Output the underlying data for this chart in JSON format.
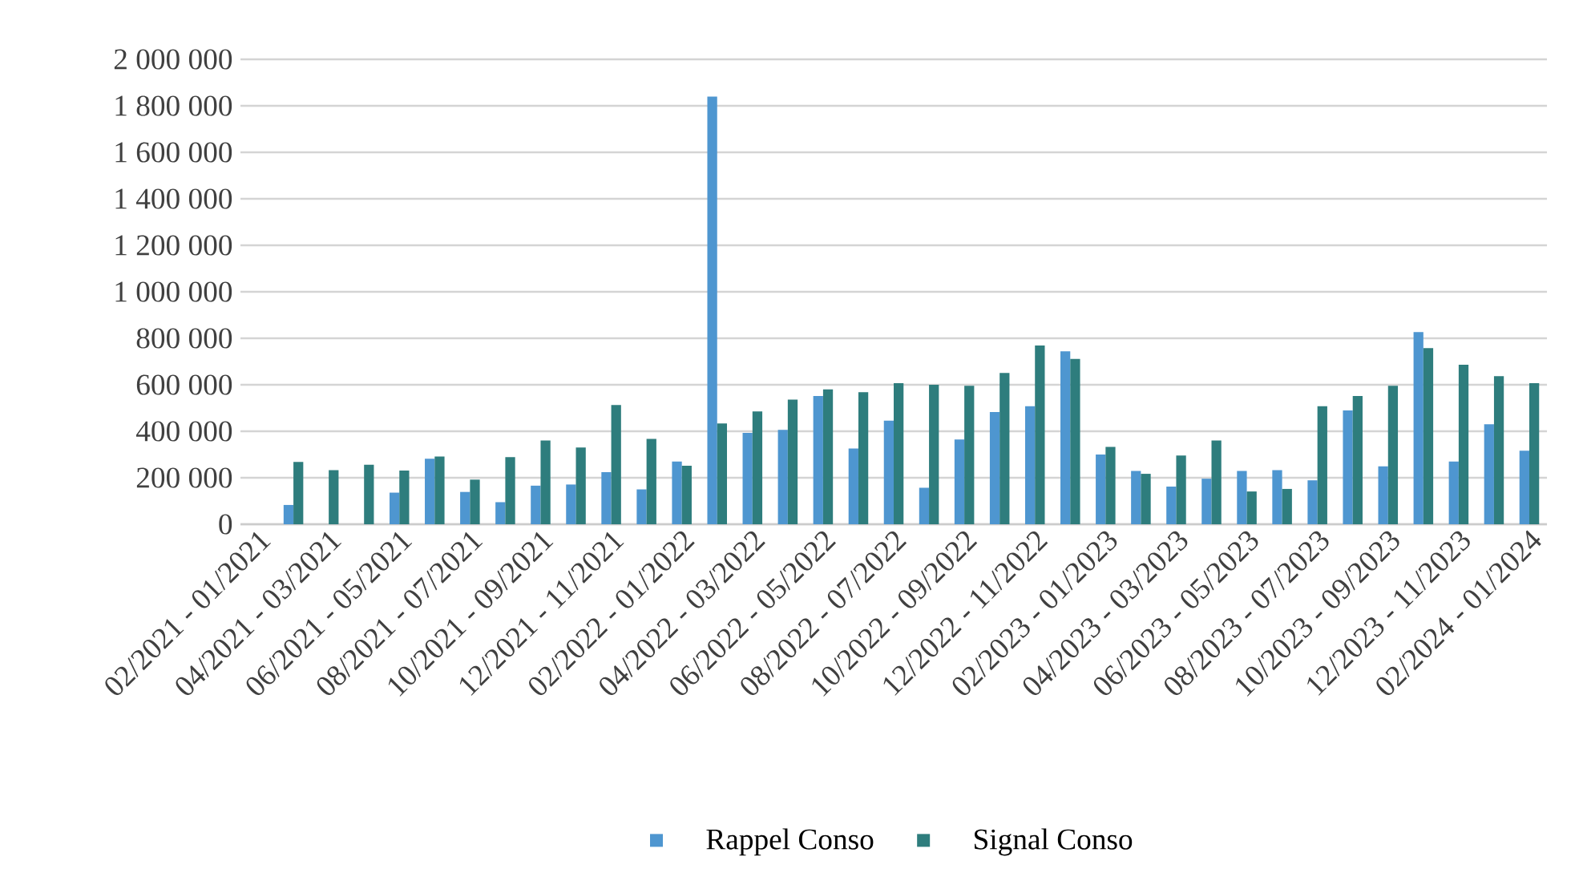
{
  "chart_data": {
    "type": "bar",
    "categories": [
      "02/2021 - 01/2021",
      null,
      "04/2021 - 03/2021",
      null,
      "06/2021 - 05/2021",
      null,
      "08/2021 - 07/2021",
      null,
      "10/2021 - 09/2021",
      null,
      "12/2021 - 11/2021",
      null,
      "02/2022 - 01/2022",
      null,
      "04/2022 - 03/2022",
      null,
      "06/2022 - 05/2022",
      null,
      "08/2022 - 07/2022",
      null,
      "10/2022 - 09/2022",
      null,
      "12/2022 - 11/2022",
      null,
      "02/2023 - 01/2023",
      null,
      "04/2023 - 03/2023",
      null,
      "06/2023 - 05/2023",
      null,
      "08/2023 - 07/2023",
      null,
      "10/2023 - 09/2023",
      null,
      "12/2023 - 11/2023",
      null,
      "02/2024 - 01/2024"
    ],
    "series": [
      {
        "name": "Rappel Conso",
        "color": "#4e96d0",
        "values": [
          null,
          83000,
          null,
          null,
          136000,
          282000,
          139000,
          95000,
          166000,
          171000,
          224000,
          150000,
          270000,
          1840000,
          393000,
          406000,
          552000,
          326000,
          446000,
          157000,
          365000,
          483000,
          508000,
          744000,
          300000,
          229000,
          162000,
          196000,
          229000,
          233000,
          189000,
          490000,
          249000,
          827000,
          270000,
          430000,
          316000
        ]
      },
      {
        "name": "Signal Conso",
        "color": "#2e7d7d",
        "values": [
          null,
          268000,
          233000,
          256000,
          231000,
          291000,
          192000,
          289000,
          360000,
          330000,
          513000,
          367000,
          252000,
          434000,
          485000,
          536000,
          580000,
          568000,
          607000,
          600000,
          596000,
          651000,
          769000,
          711000,
          333000,
          217000,
          296000,
          360000,
          141000,
          152000,
          508000,
          552000,
          596000,
          758000,
          686000,
          637000,
          607000
        ]
      }
    ],
    "ylim": [
      0,
      2000000
    ],
    "yticks": [
      0,
      {
        "value": 200000,
        "label": "200 000"
      },
      {
        "value": 400000,
        "label": "400 000"
      },
      {
        "value": 600000,
        "label": "600 000"
      },
      {
        "value": 800000,
        "label": "800 000"
      },
      {
        "value": 1000000,
        "label": "1 000 000"
      },
      {
        "value": 1200000,
        "label": "1 200 000"
      },
      {
        "value": 1400000,
        "label": "1 400 000"
      },
      {
        "value": 1600000,
        "label": "1 600 000"
      },
      {
        "value": 1800000,
        "label": "1 800 000"
      },
      {
        "value": 2000000,
        "label": "2 000 000"
      }
    ],
    "grid": "y",
    "legend": "bottom"
  }
}
